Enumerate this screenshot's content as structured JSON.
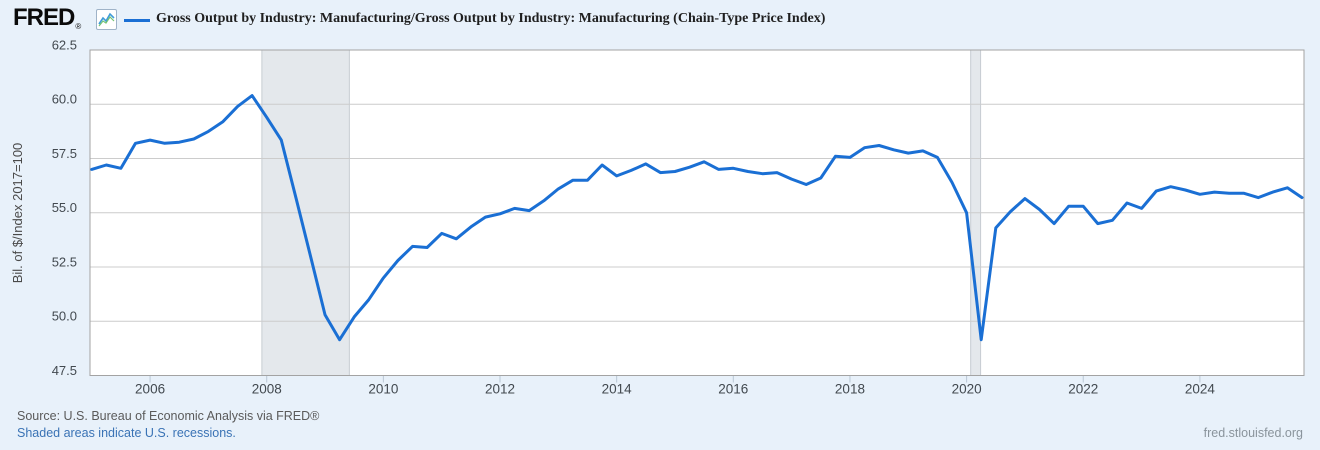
{
  "header": {
    "logo_text": "FRED",
    "logo_registered": "®",
    "legend": {
      "label": "Gross Output by Industry: Manufacturing/Gross Output by Industry: Manufacturing (Chain-Type Price Index)"
    }
  },
  "footer": {
    "source_line": "Source: U.S. Bureau of Economic Analysis via FRED®",
    "recession_note": "Shaded areas indicate U.S. recessions.",
    "site_link": "fred.stlouisfed.org"
  },
  "chart_data": {
    "type": "line",
    "title": "Gross Output by Industry: Manufacturing/Gross Output by Industry: Manufacturing (Chain-Type Price Index)",
    "ylabel": "Bil. of $/Index 2017=100",
    "xlabel": "",
    "frequency": "quarterly",
    "x_start": 2005.0,
    "x_step": 0.25,
    "values": [
      57.0,
      57.2,
      57.05,
      58.2,
      58.35,
      58.2,
      58.25,
      58.4,
      58.75,
      59.2,
      59.9,
      60.4,
      59.4,
      58.35,
      55.7,
      53.0,
      50.3,
      49.15,
      50.2,
      51.0,
      52.0,
      52.8,
      53.45,
      53.4,
      54.05,
      53.8,
      54.35,
      54.8,
      54.95,
      55.2,
      55.1,
      55.55,
      56.1,
      56.5,
      56.5,
      57.2,
      56.7,
      56.95,
      57.25,
      56.85,
      56.9,
      57.1,
      57.35,
      57.0,
      57.05,
      56.9,
      56.8,
      56.85,
      56.55,
      56.3,
      56.6,
      57.6,
      57.55,
      58.0,
      58.1,
      57.9,
      57.75,
      57.85,
      57.55,
      56.4,
      55.0,
      49.15,
      54.3,
      55.05,
      55.65,
      55.15,
      54.5,
      55.3,
      55.3,
      54.5,
      54.65,
      55.45,
      55.2,
      56.0,
      56.2,
      56.05,
      55.85,
      55.95,
      55.9,
      55.9,
      55.7,
      55.95,
      56.15,
      55.7
    ],
    "xlim": [
      2004.97,
      2025.785
    ],
    "ylim": [
      47.5,
      62.5
    ],
    "y_ticks": [
      62.5,
      60.0,
      57.5,
      55.0,
      52.5,
      50.0,
      47.5
    ],
    "x_ticks": [
      2006,
      2008,
      2010,
      2012,
      2014,
      2016,
      2018,
      2020,
      2022,
      2024
    ],
    "grid": "horizontal",
    "legend_position": "top",
    "recessions": [
      [
        2007.917,
        2009.417
      ],
      [
        2020.07,
        2020.24
      ]
    ],
    "colors": {
      "line": "#1a6fd4",
      "recession": "#e4e8ec",
      "recession_edge": "#c6ccd2",
      "grid": "#cccccc",
      "border": "#a3a3a3",
      "plot_bg": "#ffffff",
      "page_bg": "#e8f1fa",
      "tick_label": "#42494f",
      "axis_title": "#4a4a4a",
      "x_tick_mark": "#b9c7d4"
    }
  }
}
